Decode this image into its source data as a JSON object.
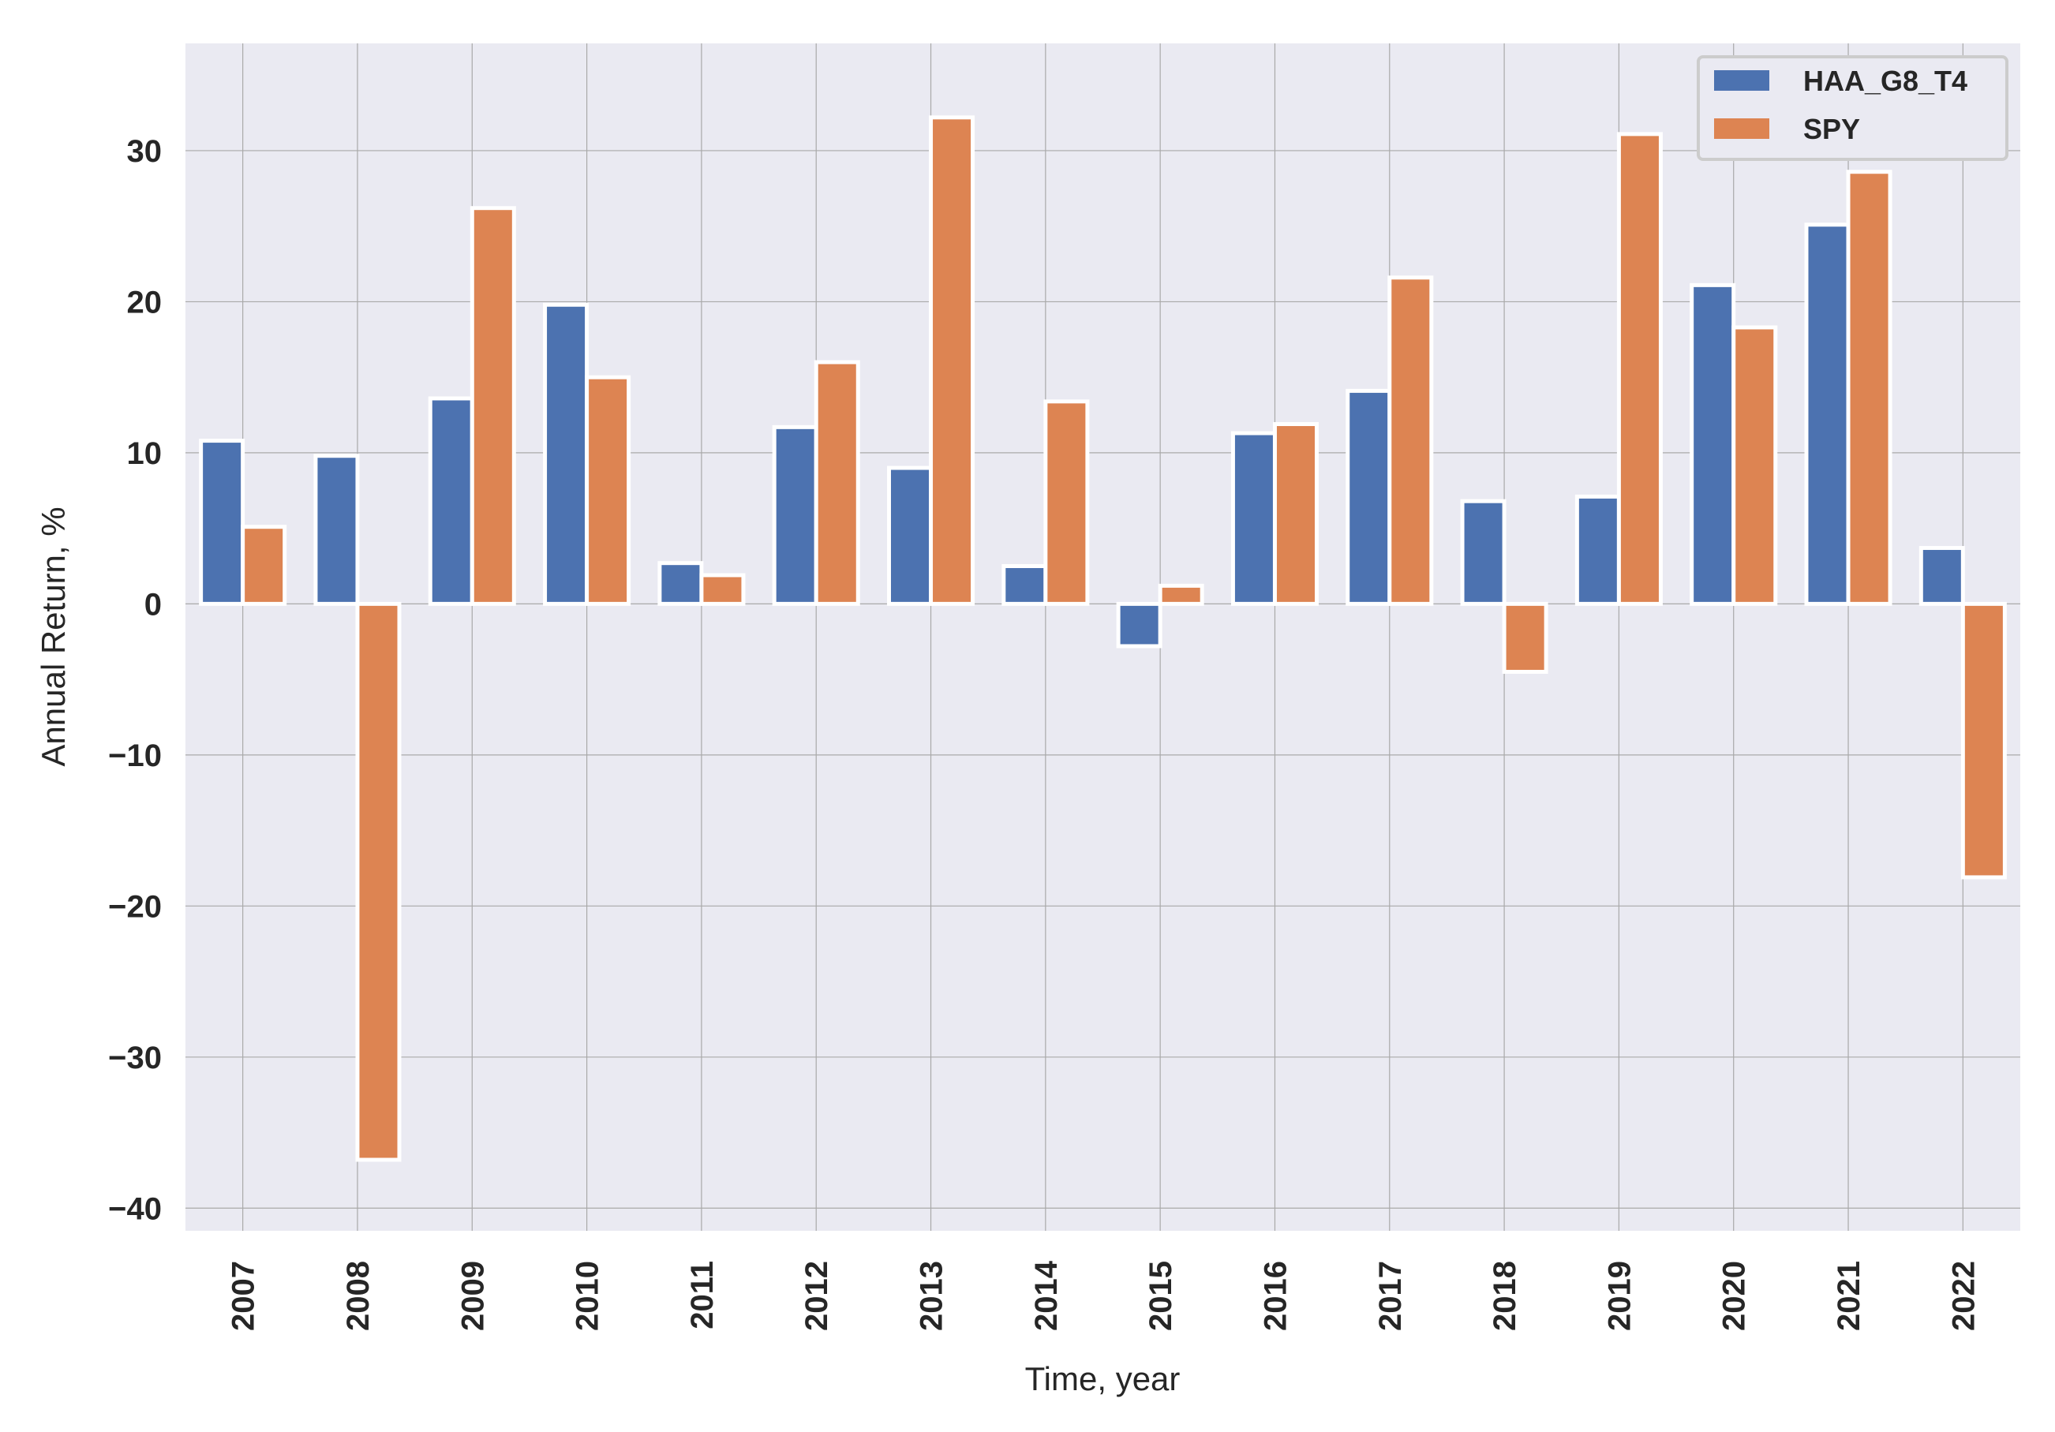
{
  "chart_data": {
    "type": "bar",
    "categories": [
      "2007",
      "2008",
      "2009",
      "2010",
      "2011",
      "2012",
      "2013",
      "2014",
      "2015",
      "2016",
      "2017",
      "2018",
      "2019",
      "2020",
      "2021",
      "2022"
    ],
    "series": [
      {
        "name": "HAA_G8_T4",
        "color": "#4c72b0",
        "values": [
          10.8,
          9.8,
          13.6,
          19.8,
          2.7,
          11.7,
          9.0,
          2.5,
          -2.8,
          11.3,
          14.1,
          6.8,
          7.1,
          21.1,
          25.1,
          3.7
        ]
      },
      {
        "name": "SPY",
        "color": "#dd8452",
        "values": [
          5.1,
          -36.8,
          26.2,
          15.0,
          1.9,
          16.0,
          32.2,
          13.4,
          1.2,
          11.9,
          21.6,
          -4.5,
          31.1,
          18.3,
          28.6,
          -18.1
        ]
      }
    ],
    "xlabel": "Time, year",
    "ylabel": "Annual Return, %",
    "ylim": [
      -41.5,
      37.1
    ],
    "yticks": [
      30,
      20,
      10,
      0,
      -10,
      -20,
      -30,
      -40
    ],
    "ytick_labels": [
      "30",
      "20",
      "10",
      "0",
      "−10",
      "−20",
      "−30",
      "−40"
    ],
    "grid": true,
    "legend_position": "top-right",
    "background_color": "#eaeaf2",
    "grid_color": "#a9a9a9"
  }
}
